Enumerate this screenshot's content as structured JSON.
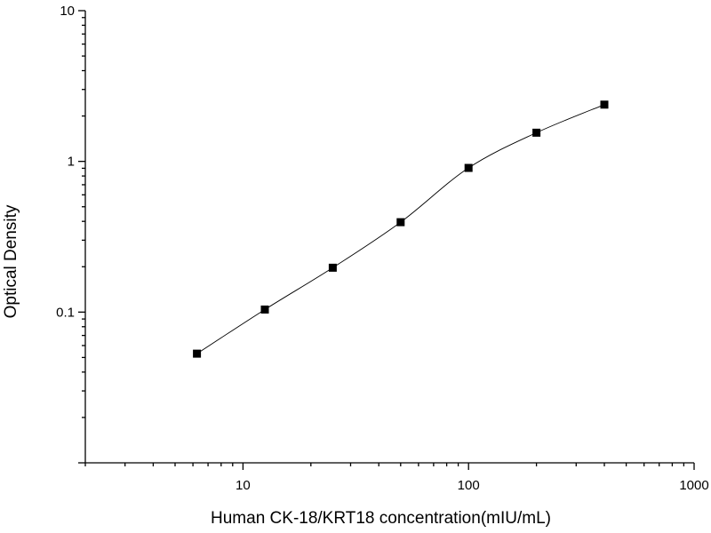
{
  "chart_data": {
    "type": "scatter",
    "title": "",
    "xlabel": "Human CK-18/KRT18 concentration(mIU/mL)",
    "ylabel": "Optical Density",
    "x_scale": "log",
    "y_scale": "log",
    "xlim": [
      2,
      1000
    ],
    "ylim": [
      0.01,
      10
    ],
    "x_ticks": [
      10,
      100,
      1000
    ],
    "x_tick_labels": [
      "10",
      "100",
      "1000"
    ],
    "y_ticks": [
      0.1,
      1,
      10
    ],
    "y_tick_labels": [
      "0.1",
      "1",
      "10"
    ],
    "grid": false,
    "legend": "none",
    "series": [
      {
        "marker": "square",
        "x": [
          6.25,
          12.5,
          25,
          50,
          100,
          200,
          400
        ],
        "y": [
          0.053,
          0.104,
          0.197,
          0.395,
          0.905,
          1.55,
          2.38
        ]
      }
    ],
    "fit_curve": true,
    "colors": {
      "marks": "#000000",
      "background": "#ffffff"
    }
  }
}
